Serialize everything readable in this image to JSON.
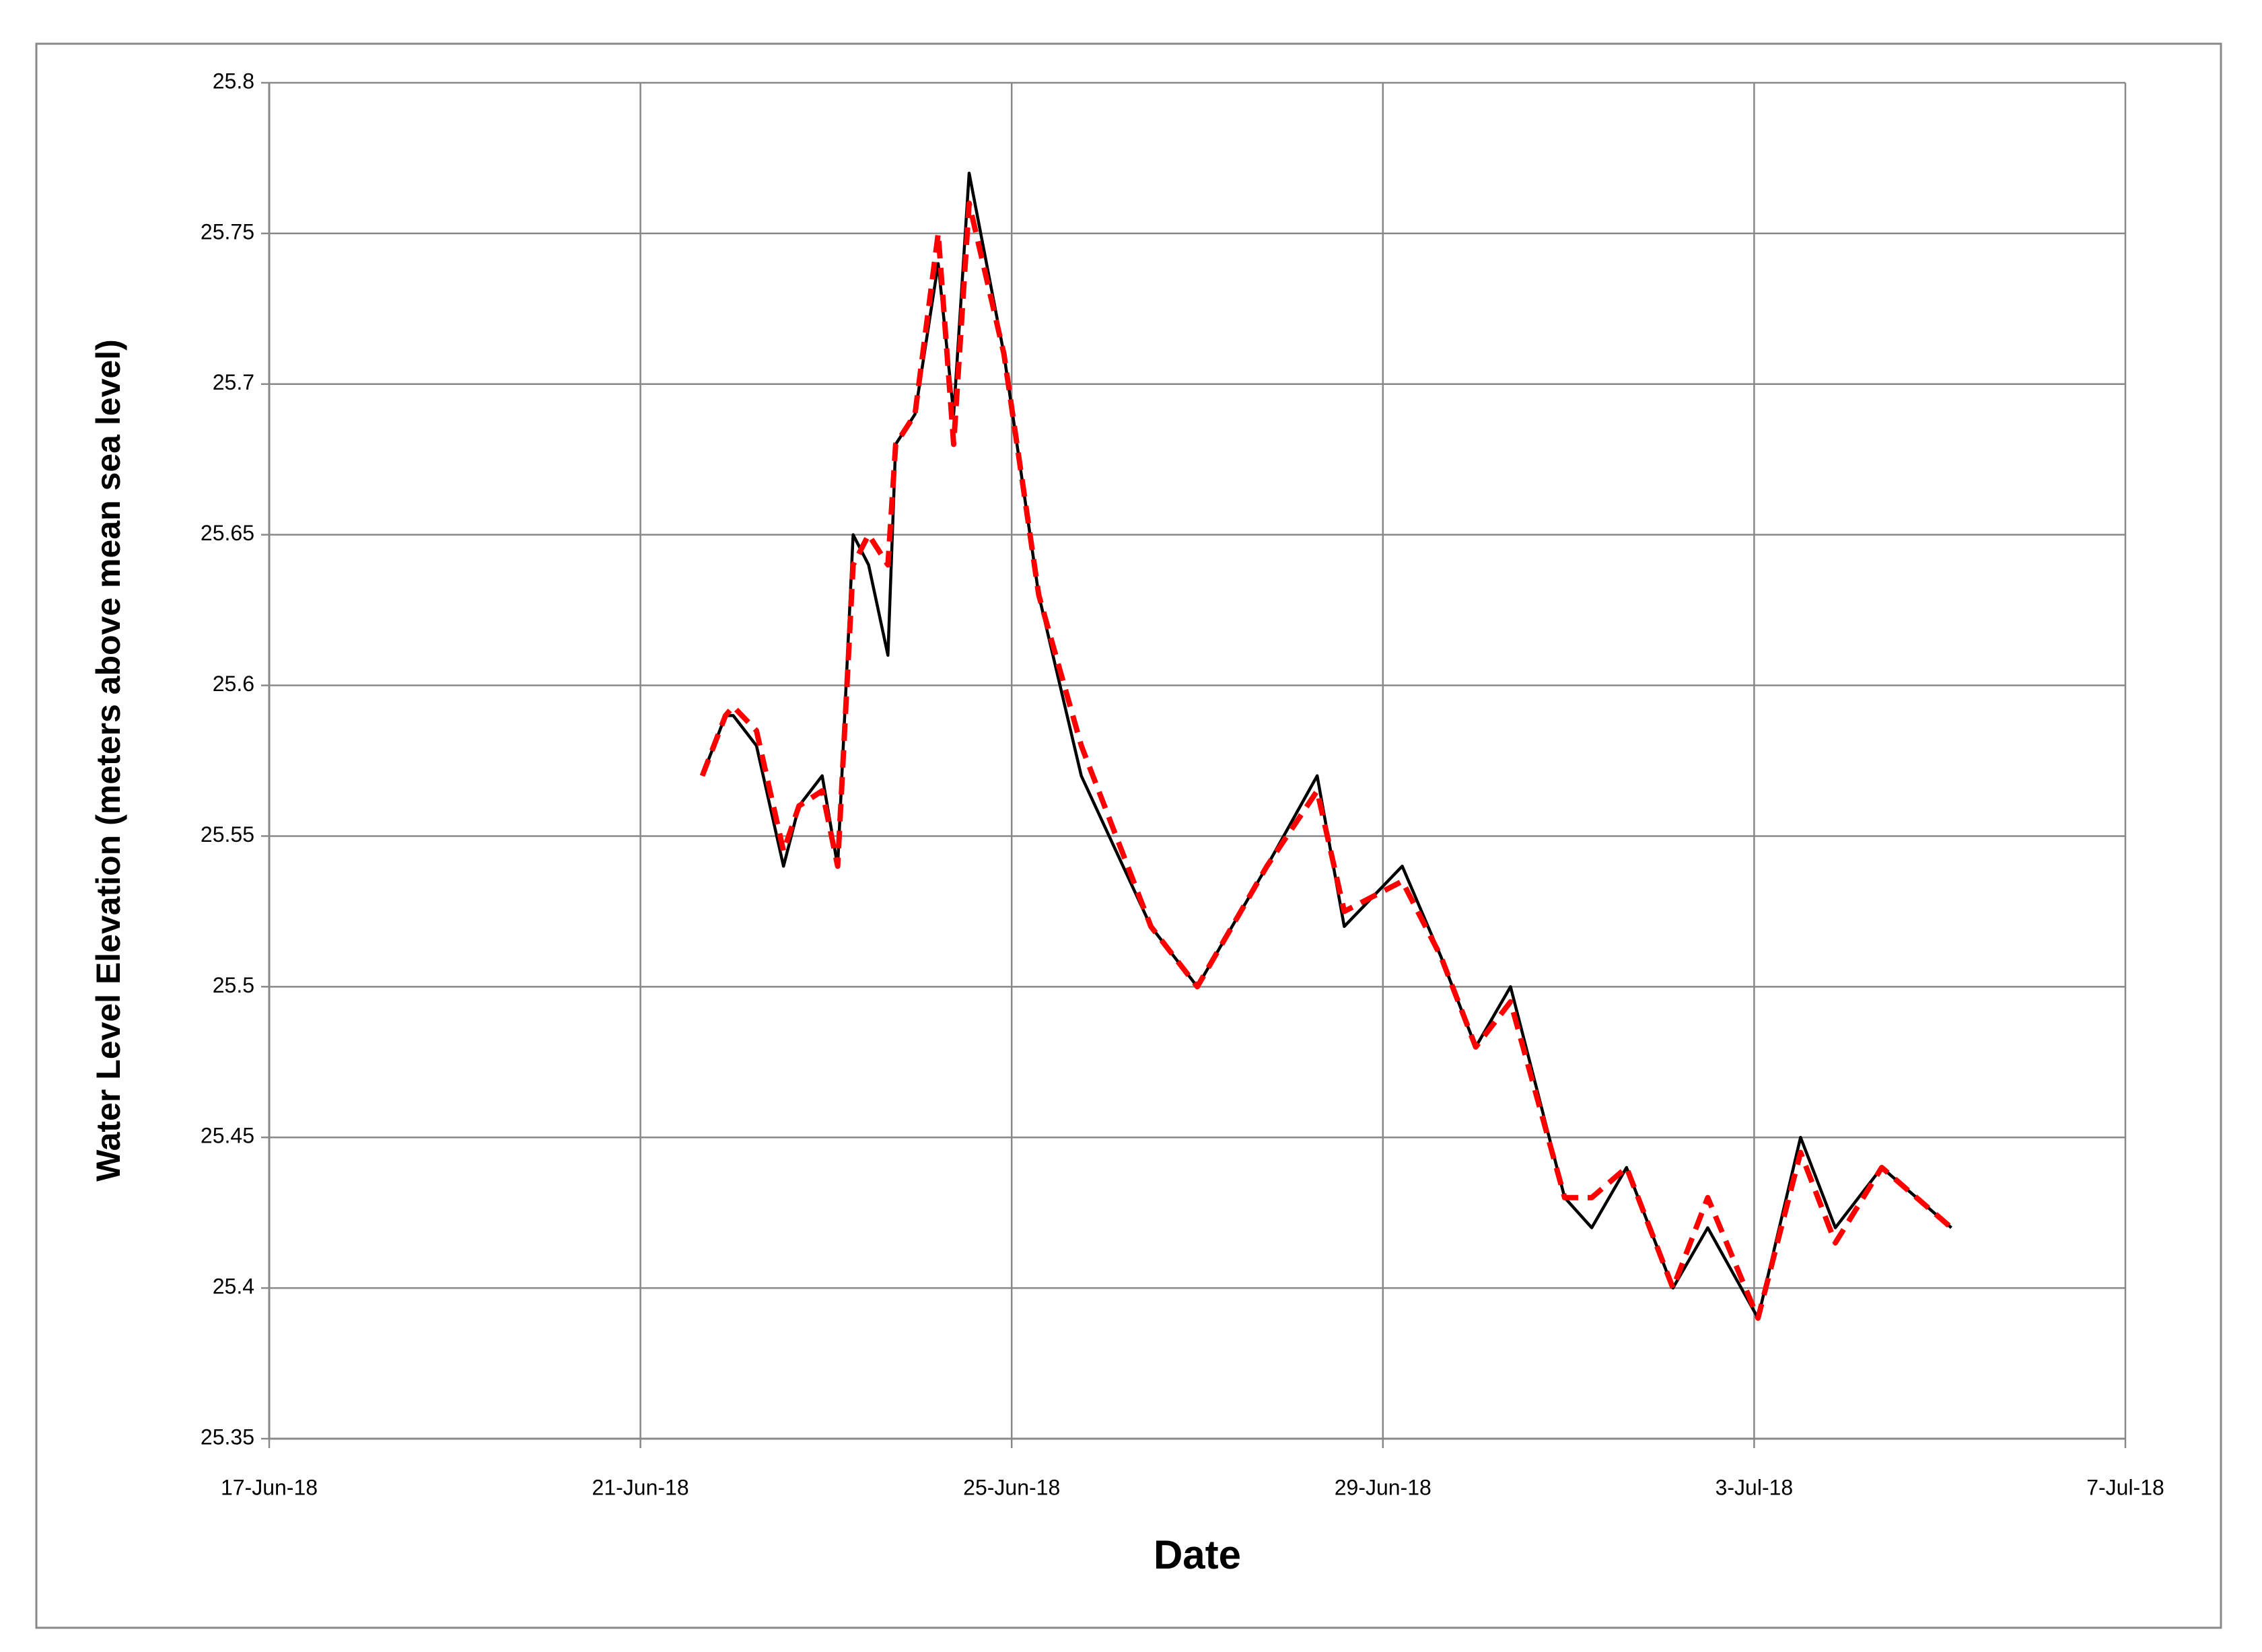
{
  "chart_data": {
    "type": "line",
    "x_label": "Date",
    "y_label": "Water  Level Elevation (meters above mean sea level)",
    "x": [
      "2018-06-21T16:00",
      "2018-06-21T22:00",
      "2018-06-22T00:00",
      "2018-06-22T06:00",
      "2018-06-22T13:00",
      "2018-06-22T17:00",
      "2018-06-22T23:00",
      "2018-06-23T03:00",
      "2018-06-23T07:00",
      "2018-06-23T11:00",
      "2018-06-23T16:00",
      "2018-06-23T18:00",
      "2018-06-23T23:00",
      "2018-06-24T05:00",
      "2018-06-24T09:00",
      "2018-06-24T13:00",
      "2018-06-24T22:00",
      "2018-06-25T07:00",
      "2018-06-25T18:00",
      "2018-06-26T12:00",
      "2018-06-27T00:00",
      "2018-06-27T18:00",
      "2018-06-28T07:00",
      "2018-06-28T14:00",
      "2018-06-29T05:00",
      "2018-06-29T15:00",
      "2018-06-30T00:00",
      "2018-06-30T09:00",
      "2018-06-30T23:00",
      "2018-07-01T06:00",
      "2018-07-01T15:00",
      "2018-07-02T03:00",
      "2018-07-02T12:00",
      "2018-07-03T01:00",
      "2018-07-03T12:00",
      "2018-07-03T21:00",
      "2018-07-04T09:00",
      "2018-07-05T03:00"
    ],
    "series": [
      {
        "color": "#000000",
        "dashed": false,
        "values": [
          25.57,
          25.59,
          25.59,
          25.58,
          25.54,
          25.56,
          25.57,
          25.54,
          25.65,
          25.64,
          25.61,
          25.68,
          25.69,
          25.74,
          25.69,
          25.77,
          25.71,
          25.63,
          25.57,
          25.52,
          25.5,
          25.54,
          25.57,
          25.52,
          25.54,
          25.51,
          25.48,
          25.5,
          25.43,
          25.42,
          25.44,
          25.4,
          25.42,
          25.39,
          25.45,
          25.42,
          25.44,
          25.42
        ]
      },
      {
        "color": "#ff0000",
        "dashed": true,
        "values": [
          25.57,
          25.59,
          25.593,
          25.585,
          25.545,
          25.56,
          25.565,
          25.54,
          25.64,
          25.65,
          25.64,
          25.68,
          25.69,
          25.75,
          25.68,
          25.76,
          25.71,
          25.63,
          25.58,
          25.52,
          25.5,
          25.54,
          25.565,
          25.525,
          25.535,
          25.51,
          25.48,
          25.495,
          25.43,
          25.43,
          25.44,
          25.4,
          25.43,
          25.39,
          25.445,
          25.415,
          25.44,
          25.42
        ]
      }
    ],
    "xlim": [
      "2018-06-17T00:00",
      "2018-07-07T00:00"
    ],
    "xticks": [
      {
        "value": "2018-06-17T00:00",
        "label": "17-Jun-18"
      },
      {
        "value": "2018-06-21T00:00",
        "label": "21-Jun-18"
      },
      {
        "value": "2018-06-25T00:00",
        "label": "25-Jun-18"
      },
      {
        "value": "2018-06-29T00:00",
        "label": "29-Jun-18"
      },
      {
        "value": "2018-07-03T00:00",
        "label": "3-Jul-18"
      },
      {
        "value": "2018-07-07T00:00",
        "label": "7-Jul-18"
      }
    ],
    "ylim": [
      25.35,
      25.8
    ],
    "yticks": [
      25.35,
      25.4,
      25.45,
      25.5,
      25.55,
      25.6,
      25.65,
      25.7,
      25.75,
      25.8
    ],
    "grid": true
  }
}
